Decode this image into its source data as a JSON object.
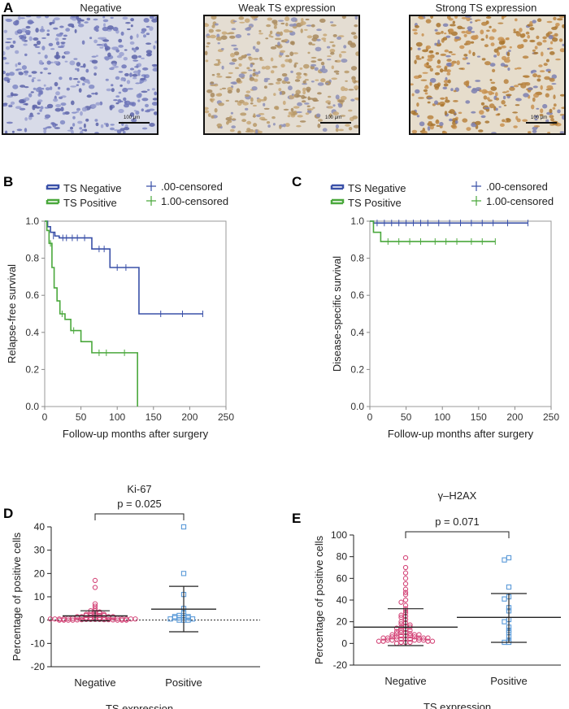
{
  "panels": {
    "A": {
      "letter": "A",
      "images": [
        {
          "title": "Negative",
          "scale_label": "100 μm",
          "stain": "negative"
        },
        {
          "title": "Weak TS expression",
          "scale_label": "100 μm",
          "stain": "weak"
        },
        {
          "title": "Strong TS expression",
          "scale_label": "100 μm",
          "stain": "strong"
        }
      ]
    },
    "B": {
      "letter": "B"
    },
    "C": {
      "letter": "C"
    },
    "D": {
      "letter": "D"
    },
    "E": {
      "letter": "E"
    }
  },
  "colors": {
    "ts_negative": "#3a50a8",
    "ts_positive": "#4aa83c",
    "negative_points": "#d4487a",
    "positive_points": "#5a9ad8"
  },
  "chart_data": [
    {
      "id": "B",
      "type": "line",
      "title": "",
      "xlabel": "Follow-up months after surgery",
      "ylabel": "Relapse-free survival",
      "xlim": [
        0,
        250
      ],
      "ylim": [
        0,
        1.0
      ],
      "xticks": [
        "0",
        "50",
        "100",
        "150",
        "200",
        "250"
      ],
      "yticks": [
        "0.0",
        "0.2",
        "0.4",
        "0.6",
        "0.8",
        "1.0"
      ],
      "legend": [
        {
          "label": "TS Negative",
          "kind": "line",
          "color": "#3a50a8"
        },
        {
          "label": ".00-censored",
          "kind": "cross",
          "color": "#3a50a8"
        },
        {
          "label": "TS Positive",
          "kind": "line",
          "color": "#4aa83c"
        },
        {
          "label": "1.00-censored",
          "kind": "cross",
          "color": "#4aa83c"
        }
      ],
      "series": [
        {
          "color": "#3a50a8",
          "steps": [
            [
              0,
              1.0
            ],
            [
              4,
              0.97
            ],
            [
              8,
              0.94
            ],
            [
              14,
              0.92
            ],
            [
              20,
              0.91
            ],
            [
              65,
              0.85
            ],
            [
              90,
              0.75
            ],
            [
              130,
              0.5
            ],
            [
              218,
              0.5
            ]
          ],
          "censored": [
            [
              12,
              0.92
            ],
            [
              25,
              0.91
            ],
            [
              30,
              0.91
            ],
            [
              38,
              0.91
            ],
            [
              45,
              0.91
            ],
            [
              55,
              0.91
            ],
            [
              75,
              0.85
            ],
            [
              82,
              0.85
            ],
            [
              100,
              0.75
            ],
            [
              112,
              0.75
            ],
            [
              160,
              0.5
            ],
            [
              190,
              0.5
            ],
            [
              218,
              0.5
            ]
          ]
        },
        {
          "color": "#4aa83c",
          "steps": [
            [
              0,
              1.0
            ],
            [
              3,
              0.95
            ],
            [
              6,
              0.88
            ],
            [
              10,
              0.75
            ],
            [
              13,
              0.64
            ],
            [
              17,
              0.57
            ],
            [
              21,
              0.5
            ],
            [
              28,
              0.47
            ],
            [
              36,
              0.41
            ],
            [
              50,
              0.35
            ],
            [
              65,
              0.29
            ],
            [
              128,
              0.29
            ],
            [
              128,
              0.0
            ]
          ],
          "censored": [
            [
              8,
              0.88
            ],
            [
              24,
              0.5
            ],
            [
              40,
              0.41
            ],
            [
              75,
              0.29
            ],
            [
              85,
              0.29
            ],
            [
              110,
              0.29
            ]
          ]
        }
      ]
    },
    {
      "id": "C",
      "type": "line",
      "title": "",
      "xlabel": "Follow-up months after surgery",
      "ylabel": "Disease-specific survival",
      "xlim": [
        0,
        250
      ],
      "ylim": [
        0,
        1.0
      ],
      "xticks": [
        "0",
        "50",
        "100",
        "150",
        "200",
        "250"
      ],
      "yticks": [
        "0.0",
        "0.2",
        "0.4",
        "0.6",
        "0.8",
        "1.0"
      ],
      "legend": [
        {
          "label": "TS Negative",
          "kind": "line",
          "color": "#3a50a8"
        },
        {
          "label": ".00-censored",
          "kind": "cross",
          "color": "#3a50a8"
        },
        {
          "label": "TS Positive",
          "kind": "line",
          "color": "#4aa83c"
        },
        {
          "label": "1.00-censored",
          "kind": "cross",
          "color": "#4aa83c"
        }
      ],
      "series": [
        {
          "color": "#3a50a8",
          "steps": [
            [
              0,
              1.0
            ],
            [
              5,
              0.99
            ],
            [
              218,
              0.99
            ]
          ],
          "censored": [
            [
              10,
              0.99
            ],
            [
              20,
              0.99
            ],
            [
              30,
              0.99
            ],
            [
              40,
              0.99
            ],
            [
              50,
              0.99
            ],
            [
              60,
              0.99
            ],
            [
              70,
              0.99
            ],
            [
              80,
              0.99
            ],
            [
              95,
              0.99
            ],
            [
              110,
              0.99
            ],
            [
              125,
              0.99
            ],
            [
              140,
              0.99
            ],
            [
              155,
              0.99
            ],
            [
              170,
              0.99
            ],
            [
              190,
              0.99
            ],
            [
              218,
              0.99
            ]
          ]
        },
        {
          "color": "#4aa83c",
          "steps": [
            [
              0,
              1.0
            ],
            [
              5,
              0.94
            ],
            [
              15,
              0.89
            ],
            [
              173,
              0.89
            ]
          ],
          "censored": [
            [
              25,
              0.89
            ],
            [
              40,
              0.89
            ],
            [
              55,
              0.89
            ],
            [
              70,
              0.89
            ],
            [
              90,
              0.89
            ],
            [
              105,
              0.89
            ],
            [
              120,
              0.89
            ],
            [
              140,
              0.89
            ],
            [
              155,
              0.89
            ],
            [
              173,
              0.89
            ]
          ]
        }
      ]
    },
    {
      "id": "D",
      "type": "scatter",
      "title": "Ki-67",
      "xlabel": "TS expression",
      "ylabel": "Percentage of positive cells",
      "ylim": [
        -20,
        40
      ],
      "yticks": [
        "-20",
        "-10",
        "0",
        "10",
        "20",
        "30",
        "40"
      ],
      "categories": [
        "Negative",
        "Positive"
      ],
      "pvalue": "p = 0.025",
      "dotted_zero": true,
      "groups": [
        {
          "name": "Negative",
          "marker": "circle",
          "color": "#d4487a",
          "mean": 1.8,
          "sd_low": -0.3,
          "sd_high": 4.0,
          "values": [
            17,
            14,
            7,
            6,
            5,
            4,
            4,
            3.5,
            3,
            3,
            3,
            2.5,
            2.5,
            2,
            2,
            2,
            2,
            2,
            1.5,
            1.5,
            1.5,
            1.5,
            1,
            1,
            1,
            1,
            1,
            1,
            1,
            1,
            1,
            0.8,
            0.8,
            0.8,
            0.5,
            0.5,
            0.5,
            0.5,
            0.5,
            0.5,
            0.5,
            0.5,
            0.3,
            0.3,
            0.3,
            0.3,
            0.2,
            0.2,
            0.2,
            0.1,
            0.1,
            0,
            0,
            0,
            0,
            0,
            0,
            0
          ]
        },
        {
          "name": "Positive",
          "marker": "square",
          "color": "#5a9ad8",
          "mean": 4.7,
          "sd_low": -5.0,
          "sd_high": 14.5,
          "values": [
            40,
            20,
            11,
            5,
            3,
            2,
            2,
            1.5,
            1.5,
            1,
            1,
            1,
            1,
            0.5,
            0.5,
            0,
            0,
            0
          ]
        }
      ]
    },
    {
      "id": "E",
      "type": "scatter",
      "title": "γ–H2AX",
      "xlabel": "TS expression",
      "ylabel": "Percentage of positive cells",
      "ylim": [
        -20,
        100
      ],
      "yticks": [
        "-20",
        "0",
        "20",
        "40",
        "60",
        "80",
        "100"
      ],
      "categories": [
        "Negative",
        "Positive"
      ],
      "pvalue": "p = 0.071",
      "dotted_zero": false,
      "groups": [
        {
          "name": "Negative",
          "marker": "circle",
          "color": "#d4487a",
          "mean": 15,
          "sd_low": -2,
          "sd_high": 32,
          "values": [
            79,
            70,
            65,
            60,
            55,
            50,
            47,
            45,
            40,
            38,
            35,
            32,
            30,
            28,
            26,
            25,
            24,
            22,
            20,
            19,
            18,
            17,
            16,
            15,
            15,
            14,
            13,
            12,
            12,
            11,
            10,
            10,
            9,
            9,
            8,
            8,
            8,
            7,
            7,
            7,
            6,
            6,
            6,
            5,
            5,
            5,
            5,
            5,
            4,
            4,
            4,
            4,
            3,
            3,
            3,
            3,
            3,
            2,
            2,
            2,
            2,
            1,
            1,
            1,
            0
          ]
        },
        {
          "name": "Positive",
          "marker": "square",
          "color": "#5a9ad8",
          "mean": 24,
          "sd_low": 1,
          "sd_high": 46,
          "values": [
            79,
            77,
            52,
            43,
            41,
            33,
            30,
            22,
            20,
            15,
            12,
            10,
            6,
            3,
            1,
            1
          ]
        }
      ]
    }
  ]
}
